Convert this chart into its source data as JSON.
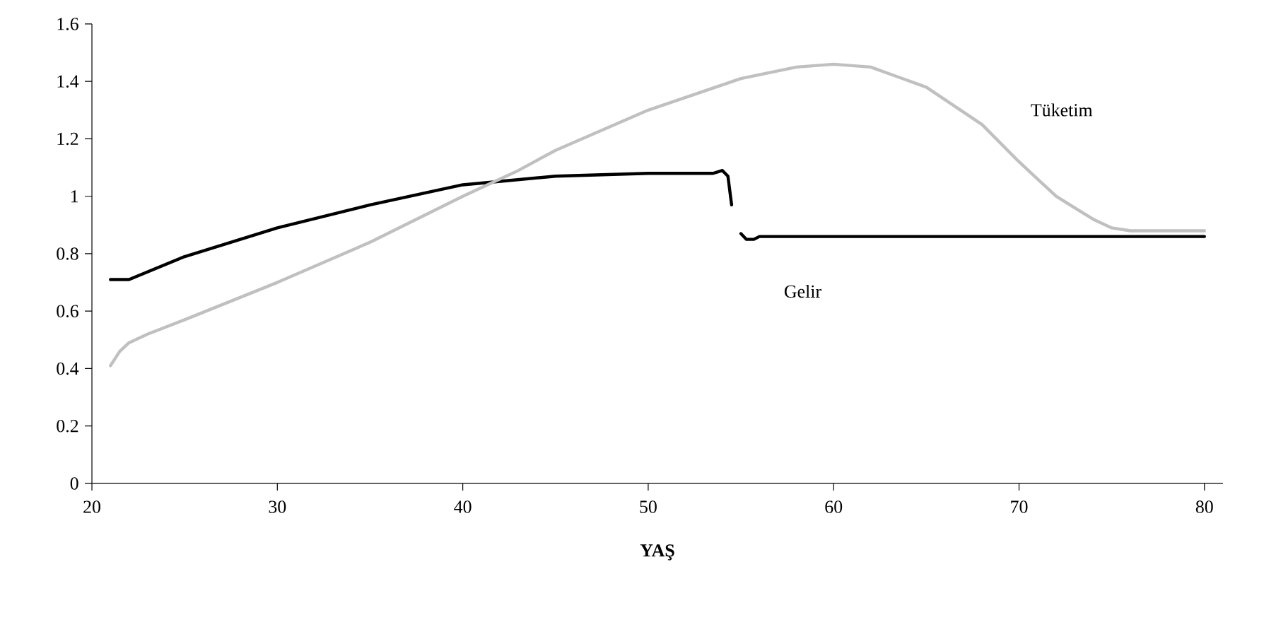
{
  "chart_data": {
    "type": "line",
    "xlabel": "YAŞ",
    "xlim": [
      20,
      81
    ],
    "ylim": [
      0,
      1.6
    ],
    "xticks": [
      20,
      30,
      40,
      50,
      60,
      70,
      80
    ],
    "yticks": [
      0,
      0.2,
      0.4,
      0.6,
      0.8,
      1,
      1.2,
      1.4,
      1.6
    ],
    "grid": false,
    "legend": false,
    "marker": "none",
    "line_style": "solid",
    "series": [
      {
        "name": "Gelir",
        "color": "#000000",
        "x": [
          21,
          22,
          25,
          30,
          35,
          40,
          45,
          50,
          53.5,
          54,
          54.3,
          54.5,
          54.8,
          55,
          55.3,
          55.7,
          56,
          56.5,
          57,
          60,
          70,
          80
        ],
        "values": [
          0.71,
          0.71,
          0.79,
          0.89,
          0.97,
          1.04,
          1.07,
          1.08,
          1.08,
          1.09,
          1.07,
          0.97,
          null,
          0.87,
          0.85,
          0.85,
          0.86,
          0.86,
          0.86,
          0.86,
          0.86,
          0.86
        ]
      },
      {
        "name": "Tüketim",
        "color": "#c0c0c0",
        "x": [
          21,
          21.5,
          22,
          23,
          25,
          30,
          35,
          40,
          43,
          45,
          50,
          55,
          58,
          60,
          62,
          65,
          68,
          70,
          72,
          74,
          75,
          76,
          78,
          80
        ],
        "values": [
          0.41,
          0.46,
          0.49,
          0.52,
          0.57,
          0.7,
          0.84,
          1.0,
          1.09,
          1.16,
          1.3,
          1.41,
          1.45,
          1.46,
          1.45,
          1.38,
          1.25,
          1.12,
          1.0,
          0.92,
          0.89,
          0.88,
          0.88,
          0.88
        ]
      }
    ]
  }
}
